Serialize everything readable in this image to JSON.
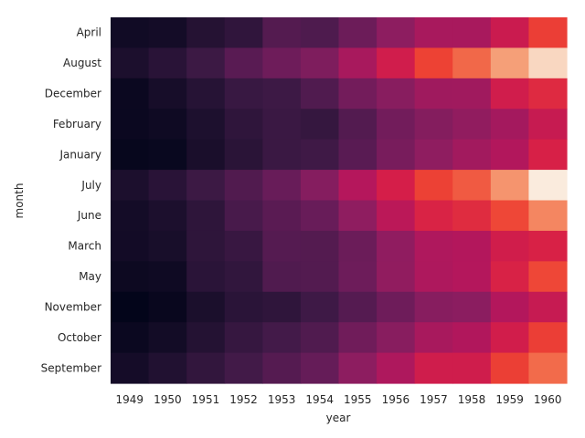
{
  "chart_data": {
    "type": "heatmap",
    "title": "",
    "xlabel": "year",
    "ylabel": "month",
    "x": [
      "1949",
      "1950",
      "1951",
      "1952",
      "1953",
      "1954",
      "1955",
      "1956",
      "1957",
      "1958",
      "1959",
      "1960"
    ],
    "y": [
      "April",
      "August",
      "December",
      "February",
      "January",
      "July",
      "June",
      "March",
      "May",
      "November",
      "October",
      "September"
    ],
    "values": [
      [
        129,
        135,
        163,
        181,
        235,
        227,
        269,
        313,
        348,
        348,
        396,
        461
      ],
      [
        148,
        170,
        199,
        242,
        272,
        293,
        347,
        405,
        467,
        505,
        559,
        606
      ],
      [
        118,
        140,
        166,
        194,
        201,
        229,
        278,
        306,
        336,
        337,
        405,
        432
      ],
      [
        118,
        126,
        150,
        180,
        196,
        188,
        233,
        277,
        301,
        318,
        342,
        391
      ],
      [
        112,
        115,
        145,
        171,
        196,
        204,
        242,
        284,
        315,
        340,
        360,
        417
      ],
      [
        148,
        170,
        199,
        230,
        264,
        302,
        364,
        413,
        465,
        491,
        548,
        622
      ],
      [
        135,
        149,
        178,
        218,
        243,
        264,
        315,
        374,
        422,
        435,
        472,
        535
      ],
      [
        132,
        141,
        178,
        193,
        236,
        235,
        267,
        317,
        356,
        362,
        406,
        419
      ],
      [
        121,
        125,
        172,
        183,
        229,
        234,
        270,
        318,
        355,
        363,
        420,
        472
      ],
      [
        104,
        114,
        146,
        172,
        180,
        203,
        237,
        271,
        305,
        310,
        362,
        390
      ],
      [
        119,
        133,
        162,
        191,
        211,
        229,
        274,
        306,
        347,
        359,
        407,
        461
      ],
      [
        136,
        158,
        184,
        209,
        237,
        259,
        312,
        355,
        404,
        404,
        463,
        508
      ]
    ],
    "colormap": "rocket",
    "vmin": 104,
    "vmax": 622,
    "colorbar": false,
    "grid": false
  }
}
